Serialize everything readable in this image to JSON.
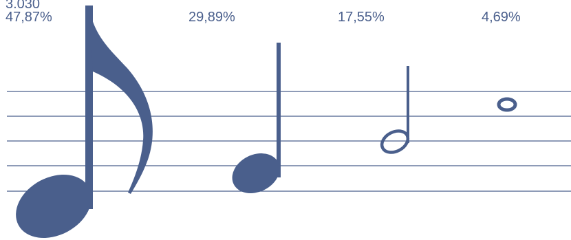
{
  "colors": {
    "note": "#4a5f8c",
    "staff": "#4a5f8c",
    "text": "#4a5f8c"
  },
  "chart_data": {
    "type": "bar",
    "categories": [
      "eighth-note-icon",
      "quarter-note-icon",
      "half-note-icon",
      "whole-note-icon"
    ],
    "values": [
      47.87,
      29.89,
      17.55,
      4.69
    ],
    "labels": [
      "47,87%",
      "29,89%",
      "17,55%",
      "4,69%"
    ],
    "unit": "%",
    "top_label_partial": "3.030",
    "title": "",
    "xlabel": "",
    "ylabel": ""
  }
}
